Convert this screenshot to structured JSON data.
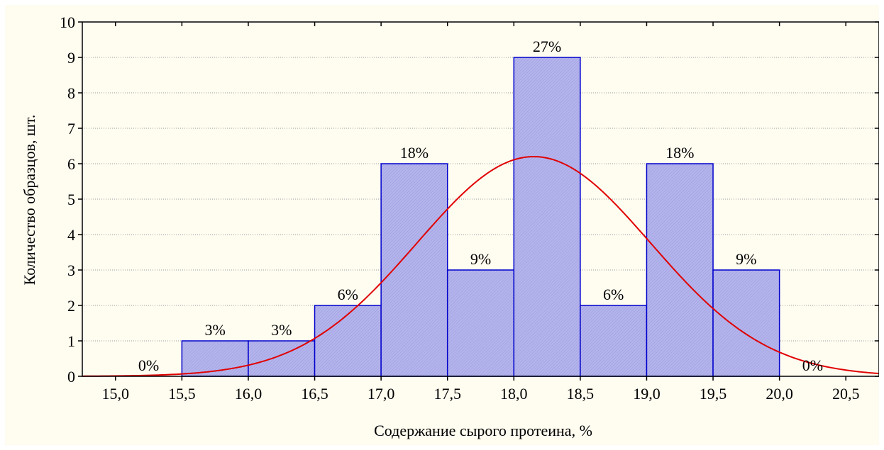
{
  "chart_data": {
    "type": "bar",
    "subtype": "histogram",
    "xlabel": "Содержание сырого протеина, %",
    "ylabel": "Количество образцов, шт.",
    "xlim": [
      14.75,
      20.75
    ],
    "ylim": [
      0,
      10
    ],
    "x_ticks": [
      "15,0",
      "15,5",
      "16,0",
      "16,5",
      "17,0",
      "17,5",
      "18,0",
      "18,5",
      "19,0",
      "19,5",
      "20,0",
      "20,5"
    ],
    "y_ticks": [
      "0",
      "1",
      "2",
      "3",
      "4",
      "5",
      "6",
      "7",
      "8",
      "9",
      "10"
    ],
    "bins": [
      {
        "from": 15.0,
        "to": 15.5,
        "value": 0,
        "label": "0%"
      },
      {
        "from": 15.5,
        "to": 16.0,
        "value": 1,
        "label": "3%"
      },
      {
        "from": 16.0,
        "to": 16.5,
        "value": 1,
        "label": "3%"
      },
      {
        "from": 16.5,
        "to": 17.0,
        "value": 2,
        "label": "6%"
      },
      {
        "from": 17.0,
        "to": 17.5,
        "value": 6,
        "label": "18%"
      },
      {
        "from": 17.5,
        "to": 18.0,
        "value": 3,
        "label": "9%"
      },
      {
        "from": 18.0,
        "to": 18.5,
        "value": 9,
        "label": "27%"
      },
      {
        "from": 18.5,
        "to": 19.0,
        "value": 2,
        "label": "6%"
      },
      {
        "from": 19.0,
        "to": 19.5,
        "value": 6,
        "label": "18%"
      },
      {
        "from": 19.5,
        "to": 20.0,
        "value": 3,
        "label": "9%"
      },
      {
        "from": 20.0,
        "to": 20.5,
        "value": 0,
        "label": "0%"
      }
    ],
    "normal_curve": {
      "mean": 18.15,
      "sd": 0.88,
      "peak": 6.2
    },
    "grid": true,
    "colors": {
      "bar_fill": "#b8b8ee",
      "bar_edge": "#0000cc",
      "curve": "#e00000",
      "background": "#fffcf0"
    }
  }
}
